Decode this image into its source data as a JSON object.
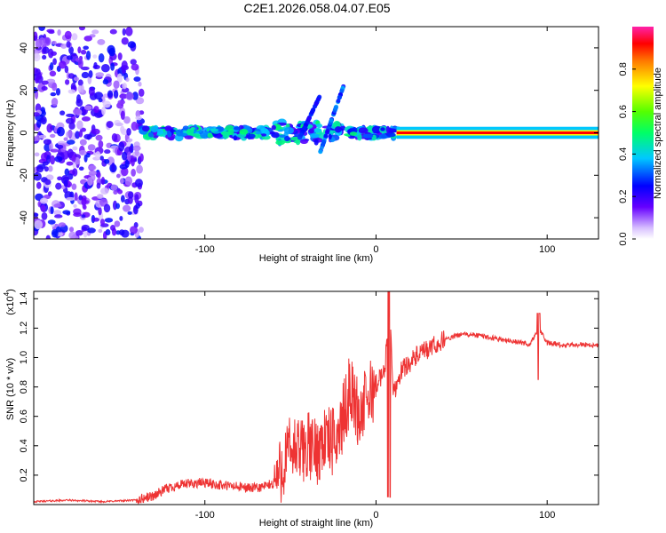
{
  "title": "C2E1.2026.058.04.07.E05",
  "chart_data": [
    {
      "type": "heatmap",
      "name": "spectrogram",
      "xlabel": "Height of straight line (km)",
      "ylabel": "Frequency (Hz)",
      "xlim": [
        -200,
        130
      ],
      "ylim": [
        -50,
        50
      ],
      "xticks": [
        -100,
        0,
        100
      ],
      "yticks": [
        -40,
        -20,
        0,
        20,
        40
      ],
      "xtick_labels": [
        "-100",
        "0",
        "100"
      ],
      "ytick_labels": [
        "-40",
        "-20",
        "0",
        "20",
        "40"
      ],
      "description_regions": [
        {
          "x_range": [
            -200,
            -137
          ],
          "freq_range": [
            -50,
            50
          ],
          "level": 0.25,
          "kind": "scattered noise"
        },
        {
          "x_range": [
            -137,
            12
          ],
          "freq_range": [
            -8,
            8
          ],
          "level": 0.45,
          "kind": "clustered band near 0 Hz"
        },
        {
          "x_range": [
            12,
            130
          ],
          "freq_range": [
            -2,
            2
          ],
          "level": 1.0,
          "kind": "steady tone at 0 Hz"
        }
      ],
      "colorbar": {
        "label": "Normalized spectral amplitude",
        "range": [
          0,
          1
        ],
        "ticks": [
          0.0,
          0.2,
          0.4,
          0.6,
          0.8
        ],
        "tick_labels": [
          "0.0",
          "0.2",
          "0.4",
          "0.6",
          "0.8"
        ]
      }
    },
    {
      "type": "line",
      "name": "snr",
      "xlabel": "Height of straight line (km)",
      "ylabel": "SNR (10 * v/v)",
      "multiplier_label": "(x10",
      "multiplier_exp": "4",
      "multiplier_close": ")",
      "xlim": [
        -200,
        130
      ],
      "ylim": [
        0,
        1.45
      ],
      "xticks": [
        -100,
        0,
        100
      ],
      "yticks": [
        0.2,
        0.4,
        0.6,
        0.8,
        1.0,
        1.2,
        1.4
      ],
      "xtick_labels": [
        "-100",
        "0",
        "100"
      ],
      "ytick_labels": [
        "0.2",
        "0.4",
        "0.6",
        "0.8",
        "1.0",
        "1.2",
        "1.4"
      ],
      "color": "#ee3333",
      "series": [
        {
          "name": "SNR",
          "x": [
            -200,
            -180,
            -160,
            -140,
            -130,
            -120,
            -110,
            -100,
            -90,
            -80,
            -70,
            -60,
            -55,
            -50,
            -45,
            -40,
            -35,
            -30,
            -25,
            -20,
            -15,
            -10,
            -5,
            0,
            5,
            8,
            10,
            15,
            20,
            25,
            30,
            40,
            50,
            60,
            70,
            80,
            90,
            95,
            100,
            110,
            120,
            130
          ],
          "y": [
            0.02,
            0.03,
            0.02,
            0.03,
            0.06,
            0.12,
            0.14,
            0.15,
            0.13,
            0.12,
            0.11,
            0.14,
            0.25,
            0.38,
            0.35,
            0.4,
            0.36,
            0.45,
            0.42,
            0.55,
            0.8,
            0.6,
            0.72,
            0.82,
            0.9,
            1.4,
            0.75,
            0.92,
            0.97,
            1.02,
            1.05,
            1.12,
            1.16,
            1.15,
            1.13,
            1.11,
            1.09,
            1.2,
            1.1,
            1.08,
            1.09,
            1.08
          ]
        }
      ]
    }
  ]
}
